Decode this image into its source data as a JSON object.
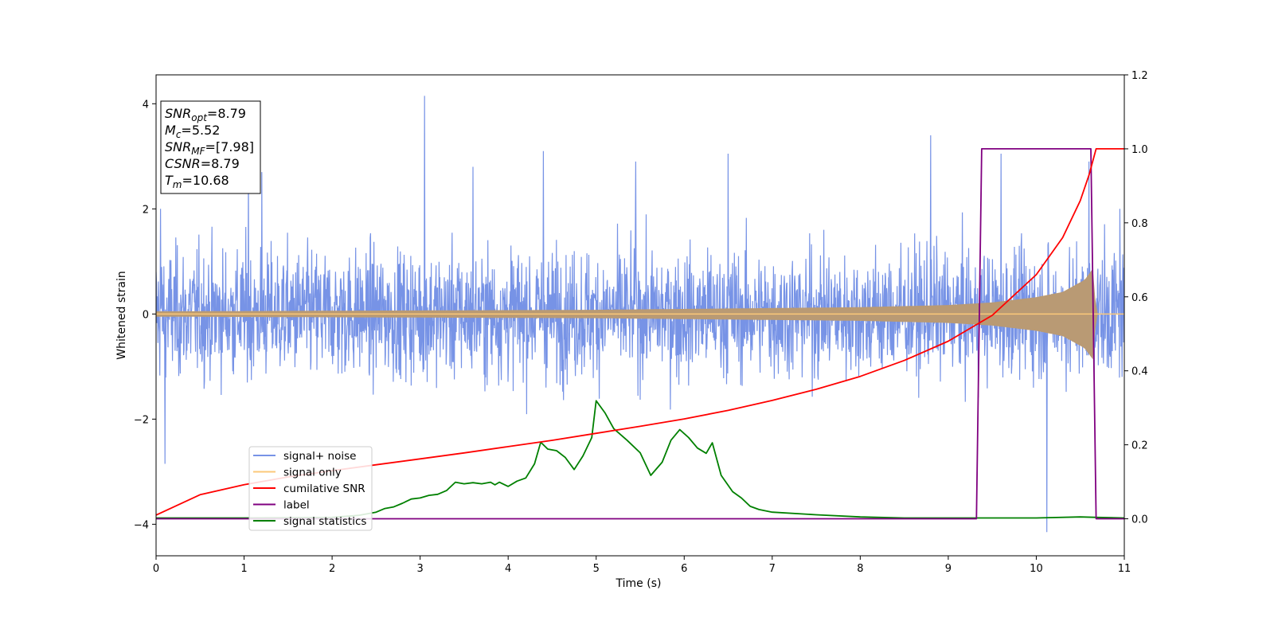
{
  "chart_data": {
    "type": "line",
    "xlabel": "Time (s)",
    "ylabel": "Whitened strain",
    "xlim": [
      0,
      11
    ],
    "ylim": [
      -4.6,
      4.55
    ],
    "y2lim": [
      -0.1,
      1.2
    ],
    "xticks": [
      "0",
      "1",
      "2",
      "3",
      "4",
      "5",
      "6",
      "7",
      "8",
      "9",
      "10",
      "11"
    ],
    "yticks": [
      "−4",
      "−2",
      "0",
      "2",
      "4"
    ],
    "y2ticks": [
      "0.0",
      "0.2",
      "0.4",
      "0.6",
      "0.8",
      "1.0",
      "1.2"
    ],
    "grid": false,
    "legend_position": "lower-left",
    "annotation": [
      {
        "base": "SNR",
        "sub": "opt",
        "value": "=8.79"
      },
      {
        "base": "M",
        "sub": "c",
        "value": "=5.52"
      },
      {
        "base": "SNR",
        "sub": "MF",
        "value": "=[7.98]"
      },
      {
        "base": "CSNR",
        "sub": "",
        "value": "=8.79"
      },
      {
        "base": "T",
        "sub": "m",
        "value": "=10.68"
      }
    ],
    "series": [
      {
        "name": "signal+ noise",
        "color": "#7793e6",
        "axis": "left",
        "kind": "noise_band",
        "typical_range": [
          -1.6,
          1.9
        ],
        "peak_spikes": [
          [
            0.05,
            2.0
          ],
          [
            0.1,
            -2.85
          ],
          [
            1.05,
            2.75
          ],
          [
            1.2,
            2.7
          ],
          [
            3.05,
            4.15
          ],
          [
            3.6,
            2.8
          ],
          [
            4.4,
            3.1
          ],
          [
            5.45,
            2.9
          ],
          [
            6.5,
            3.05
          ],
          [
            8.8,
            3.4
          ],
          [
            9.6,
            3.05
          ],
          [
            10.12,
            -4.15
          ],
          [
            10.6,
            2.9
          ],
          [
            10.95,
            2.0
          ]
        ]
      },
      {
        "name": "signal only",
        "color": "#fbc87a",
        "axis": "left",
        "kind": "chirp",
        "envelope": [
          [
            0,
            0.05
          ],
          [
            5,
            0.08
          ],
          [
            8,
            0.13
          ],
          [
            9,
            0.17
          ],
          [
            9.5,
            0.22
          ],
          [
            10,
            0.32
          ],
          [
            10.3,
            0.42
          ],
          [
            10.55,
            0.65
          ],
          [
            10.65,
            0.88
          ],
          [
            10.68,
            0.0
          ],
          [
            11,
            0.0
          ]
        ]
      },
      {
        "name": "cumilative SNR",
        "color": "#ff0000",
        "axis": "right",
        "x": [
          0,
          0.5,
          1,
          1.5,
          2,
          2.5,
          3,
          3.5,
          4,
          4.5,
          5,
          5.5,
          6,
          6.5,
          7,
          7.5,
          8,
          8.5,
          9,
          9.5,
          10,
          10.3,
          10.5,
          10.6,
          10.68,
          10.7,
          11
        ],
        "y": [
          0.01,
          0.065,
          0.092,
          0.113,
          0.13,
          0.146,
          0.162,
          0.178,
          0.195,
          0.212,
          0.231,
          0.25,
          0.27,
          0.293,
          0.32,
          0.35,
          0.385,
          0.428,
          0.48,
          0.55,
          0.66,
          0.76,
          0.86,
          0.93,
          1.0,
          1.0,
          1.0
        ]
      },
      {
        "name": "label",
        "color": "#800080",
        "axis": "right",
        "x": [
          0,
          9.32,
          9.38,
          10.62,
          10.68,
          11
        ],
        "y": [
          0.0,
          0.0,
          1.0,
          1.0,
          0.0,
          0.0
        ]
      },
      {
        "name": "signal statistics",
        "color": "#008000",
        "axis": "left",
        "x": [
          0,
          1,
          2,
          2.3,
          2.5,
          2.6,
          2.7,
          2.8,
          2.9,
          3.0,
          3.1,
          3.2,
          3.3,
          3.4,
          3.5,
          3.6,
          3.7,
          3.8,
          3.85,
          3.9,
          4.0,
          4.1,
          4.2,
          4.3,
          4.37,
          4.45,
          4.55,
          4.65,
          4.75,
          4.85,
          4.95,
          5.0,
          5.1,
          5.2,
          5.35,
          5.5,
          5.62,
          5.75,
          5.85,
          5.95,
          6.05,
          6.15,
          6.25,
          6.32,
          6.42,
          6.55,
          6.65,
          6.75,
          6.85,
          7.0,
          7.5,
          8,
          8.5,
          9,
          9.5,
          10,
          10.5,
          10.7,
          11
        ],
        "y": [
          -3.88,
          -3.88,
          -3.87,
          -3.83,
          -3.77,
          -3.7,
          -3.67,
          -3.6,
          -3.52,
          -3.5,
          -3.45,
          -3.43,
          -3.36,
          -3.2,
          -3.23,
          -3.21,
          -3.23,
          -3.2,
          -3.25,
          -3.2,
          -3.28,
          -3.18,
          -3.12,
          -2.85,
          -2.44,
          -2.57,
          -2.6,
          -2.73,
          -2.96,
          -2.7,
          -2.35,
          -1.65,
          -1.88,
          -2.18,
          -2.4,
          -2.64,
          -3.07,
          -2.82,
          -2.4,
          -2.2,
          -2.35,
          -2.55,
          -2.65,
          -2.45,
          -3.07,
          -3.38,
          -3.5,
          -3.66,
          -3.72,
          -3.77,
          -3.82,
          -3.86,
          -3.88,
          -3.88,
          -3.88,
          -3.88,
          -3.86,
          -3.87,
          -3.88
        ]
      }
    ]
  }
}
